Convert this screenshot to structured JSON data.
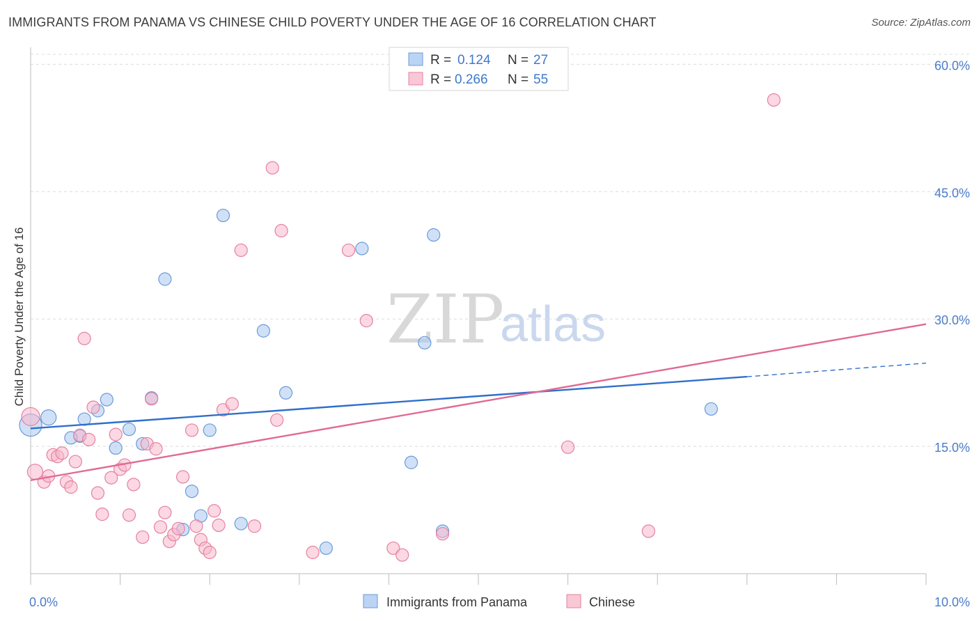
{
  "chart_data": {
    "type": "scatter",
    "title": "IMMIGRANTS FROM PANAMA VS CHINESE CHILD POVERTY UNDER THE AGE OF 16 CORRELATION CHART",
    "source": "Source: ZipAtlas.com",
    "ylabel": "Child Poverty Under the Age of 16",
    "xlim": [
      0,
      10
    ],
    "ylim": [
      0,
      62
    ],
    "x_ticks": [
      {
        "value": 0,
        "label": "0.0%"
      },
      {
        "value": 10,
        "label": "10.0%"
      }
    ],
    "y_ticks": [
      {
        "value": 15,
        "label": "15.0%"
      },
      {
        "value": 30,
        "label": "30.0%"
      },
      {
        "value": 45,
        "label": "45.0%"
      },
      {
        "value": 60,
        "label": "60.0%"
      }
    ],
    "watermark": {
      "part1": "ZIP",
      "part2": "atlas"
    },
    "legend": [
      {
        "r_label": "R =",
        "r_value": "0.124",
        "n_label": "N =",
        "n_value": "27"
      },
      {
        "r_label": "R =",
        "r_value": "0.266",
        "n_label": "N =",
        "n_value": "55"
      }
    ],
    "series": [
      {
        "name": "Immigrants from Panama",
        "color": "#a9c8f0",
        "stroke": "#6a9ad8",
        "line_color": "#2f6fcb",
        "trend": {
          "x0": 0,
          "y0": 17.1,
          "x1": 8.0,
          "y1": 23.2,
          "dash_to_x": 10,
          "dash_to_y": 24.8
        },
        "points": [
          [
            0.0,
            17.5,
            16
          ],
          [
            0.2,
            18.4,
            11
          ],
          [
            0.55,
            16.2,
            9
          ],
          [
            0.45,
            16.0,
            9
          ],
          [
            0.6,
            18.2,
            9
          ],
          [
            0.75,
            19.2,
            9
          ],
          [
            0.85,
            20.5,
            9
          ],
          [
            0.95,
            14.8,
            9
          ],
          [
            1.1,
            17.0,
            9
          ],
          [
            1.25,
            15.3,
            9
          ],
          [
            1.35,
            20.7,
            9
          ],
          [
            1.5,
            34.7,
            9
          ],
          [
            1.7,
            5.2,
            9
          ],
          [
            1.8,
            9.7,
            9
          ],
          [
            1.9,
            6.8,
            9
          ],
          [
            2.0,
            16.9,
            9
          ],
          [
            2.15,
            42.2,
            9
          ],
          [
            2.35,
            5.9,
            9
          ],
          [
            2.6,
            28.6,
            9
          ],
          [
            2.85,
            21.3,
            9
          ],
          [
            3.3,
            3.0,
            9
          ],
          [
            3.7,
            38.3,
            9
          ],
          [
            4.25,
            13.1,
            9
          ],
          [
            4.4,
            27.2,
            9
          ],
          [
            4.5,
            39.9,
            9
          ],
          [
            4.6,
            5.0,
            9
          ],
          [
            7.6,
            19.4,
            9
          ]
        ]
      },
      {
        "name": "Chinese",
        "color": "#f7b8cc",
        "stroke": "#e6809f",
        "line_color": "#e06a95",
        "trend": {
          "x0": 0,
          "y0": 11.0,
          "x1": 10,
          "y1": 29.4
        },
        "points": [
          [
            0.0,
            18.5,
            13
          ],
          [
            0.05,
            12.0,
            11
          ],
          [
            0.15,
            10.8,
            9
          ],
          [
            0.2,
            11.5,
            9
          ],
          [
            0.25,
            14.0,
            9
          ],
          [
            0.3,
            13.8,
            9
          ],
          [
            0.35,
            14.2,
            9
          ],
          [
            0.4,
            10.8,
            9
          ],
          [
            0.45,
            10.2,
            9
          ],
          [
            0.5,
            13.2,
            9
          ],
          [
            0.55,
            16.3,
            9
          ],
          [
            0.6,
            27.7,
            9
          ],
          [
            0.65,
            15.8,
            9
          ],
          [
            0.7,
            19.6,
            9
          ],
          [
            0.75,
            9.5,
            9
          ],
          [
            0.8,
            7.0,
            9
          ],
          [
            0.9,
            11.3,
            9
          ],
          [
            0.95,
            16.4,
            9
          ],
          [
            1.0,
            12.3,
            9
          ],
          [
            1.05,
            12.8,
            9
          ],
          [
            1.1,
            6.9,
            9
          ],
          [
            1.15,
            10.5,
            9
          ],
          [
            1.25,
            4.3,
            9
          ],
          [
            1.3,
            15.3,
            9
          ],
          [
            1.35,
            20.6,
            9
          ],
          [
            1.4,
            14.7,
            9
          ],
          [
            1.45,
            5.5,
            9
          ],
          [
            1.5,
            7.2,
            9
          ],
          [
            1.55,
            3.8,
            9
          ],
          [
            1.6,
            4.6,
            9
          ],
          [
            1.65,
            5.3,
            9
          ],
          [
            1.7,
            11.4,
            9
          ],
          [
            1.8,
            16.9,
            9
          ],
          [
            1.85,
            5.6,
            9
          ],
          [
            1.9,
            4.0,
            9
          ],
          [
            1.95,
            3.0,
            9
          ],
          [
            2.0,
            2.5,
            9
          ],
          [
            2.05,
            7.4,
            9
          ],
          [
            2.1,
            5.7,
            9
          ],
          [
            2.15,
            19.3,
            9
          ],
          [
            2.25,
            20.0,
            9
          ],
          [
            2.35,
            38.1,
            9
          ],
          [
            2.5,
            5.6,
            9
          ],
          [
            2.7,
            47.8,
            9
          ],
          [
            2.75,
            18.1,
            9
          ],
          [
            2.8,
            40.4,
            9
          ],
          [
            3.15,
            2.5,
            9
          ],
          [
            3.55,
            38.1,
            9
          ],
          [
            3.75,
            29.8,
            9
          ],
          [
            4.05,
            3.0,
            9
          ],
          [
            4.15,
            2.2,
            9
          ],
          [
            4.6,
            4.7,
            9
          ],
          [
            6.0,
            14.9,
            9
          ],
          [
            6.9,
            5.0,
            9
          ],
          [
            8.3,
            55.8,
            9
          ]
        ]
      }
    ]
  }
}
